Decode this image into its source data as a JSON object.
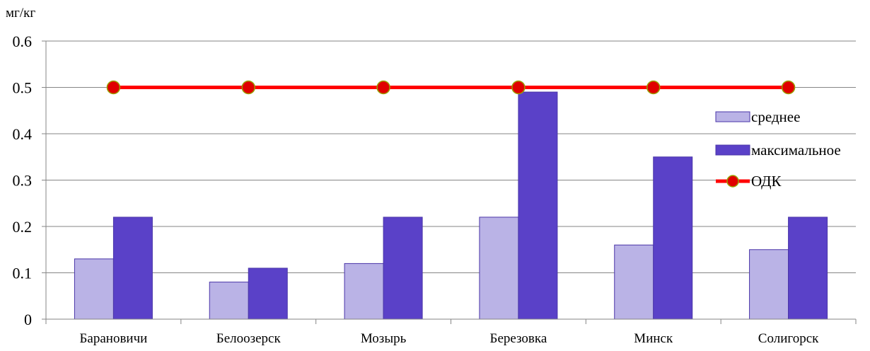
{
  "chart_data": {
    "type": "bar",
    "title": "",
    "xlabel": "",
    "ylabel": "мг/кг",
    "ylim": [
      0,
      0.6
    ],
    "yticks": [
      "0",
      "0.1",
      "0.2",
      "0.3",
      "0.4",
      "0.5",
      "0.6"
    ],
    "ytick_values": [
      0,
      0.1,
      0.2,
      0.3,
      0.4,
      0.5,
      0.6
    ],
    "grid": true,
    "legend_position": "right",
    "categories": [
      "Барановичи",
      "Белоозерск",
      "Мозырь",
      "Березовка",
      "Минск",
      "Солигорск"
    ],
    "series": [
      {
        "name": "среднее",
        "kind": "bar",
        "color": "#bab3e6",
        "values": [
          0.13,
          0.08,
          0.12,
          0.22,
          0.16,
          0.15
        ]
      },
      {
        "name": "максимальное",
        "kind": "bar",
        "color": "#5a41c8",
        "values": [
          0.22,
          0.11,
          0.22,
          0.49,
          0.35,
          0.22
        ]
      },
      {
        "name": "ОДК",
        "kind": "line",
        "color": "#ff0000",
        "marker_color": "#e00000",
        "marker_edge": "#9aa000",
        "values": [
          0.5,
          0.5,
          0.5,
          0.5,
          0.5,
          0.5
        ]
      }
    ]
  }
}
